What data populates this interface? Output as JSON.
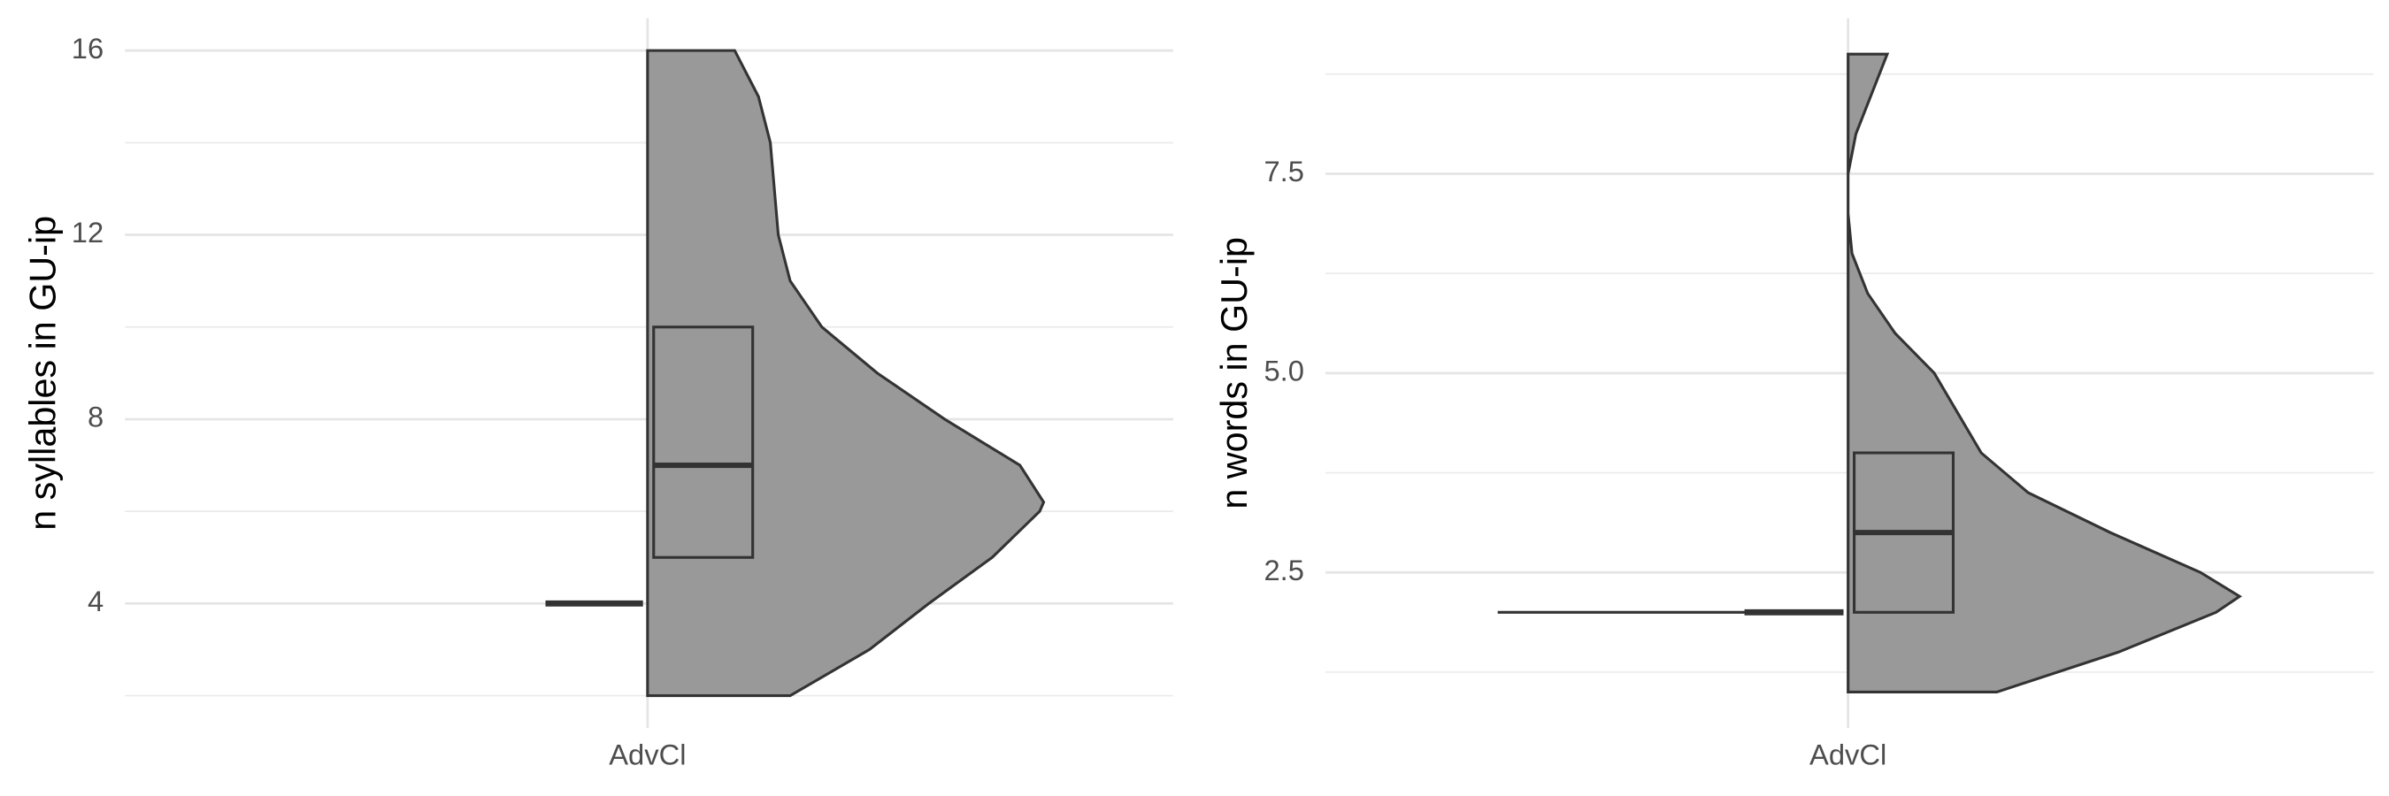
{
  "chart_data": [
    {
      "type": "half-violin",
      "y_label": "n syllables in GU-ip",
      "categories": [
        "AdvCl"
      ],
      "ylim": [
        1.3,
        16.7
      ],
      "yticks": [
        4,
        8,
        12,
        16
      ],
      "minor_yticks": [
        2,
        6,
        10,
        14
      ],
      "grid": true,
      "color": "#999999",
      "density_y": [
        2,
        3,
        4,
        5,
        6,
        6.2,
        7,
        8,
        9,
        10,
        11,
        12,
        13,
        14,
        15,
        16
      ],
      "density": [
        0.36,
        0.56,
        0.71,
        0.87,
        0.99,
        1.0,
        0.94,
        0.75,
        0.58,
        0.44,
        0.36,
        0.33,
        0.32,
        0.31,
        0.28,
        0.22
      ],
      "box": {
        "q1": 5,
        "median": 7,
        "q3": 10
      },
      "point_value": 4
    },
    {
      "type": "half-violin",
      "y_label": "n words in GU-ip",
      "categories": [
        "AdvCl"
      ],
      "ylim": [
        0.55,
        9.45
      ],
      "yticks": [
        2.5,
        {
          "value": 5,
          "label": "5.0"
        },
        7.5
      ],
      "minor_yticks": [
        1.25,
        3.75,
        6.25,
        8.75
      ],
      "grid": true,
      "color": "#999999",
      "density_y": [
        1,
        1.5,
        2,
        2.2,
        2.5,
        3,
        3.5,
        4,
        4.5,
        5,
        5.5,
        6,
        6.5,
        7,
        7.5,
        8,
        8.5,
        9
      ],
      "density": [
        0.38,
        0.69,
        0.94,
        1.0,
        0.9,
        0.67,
        0.46,
        0.34,
        0.28,
        0.22,
        0.12,
        0.05,
        0.01,
        0.0,
        0.0,
        0.02,
        0.06,
        0.1
      ],
      "box": {
        "q1": 2,
        "median": 3,
        "q3": 4
      },
      "point_value": 2
    }
  ]
}
